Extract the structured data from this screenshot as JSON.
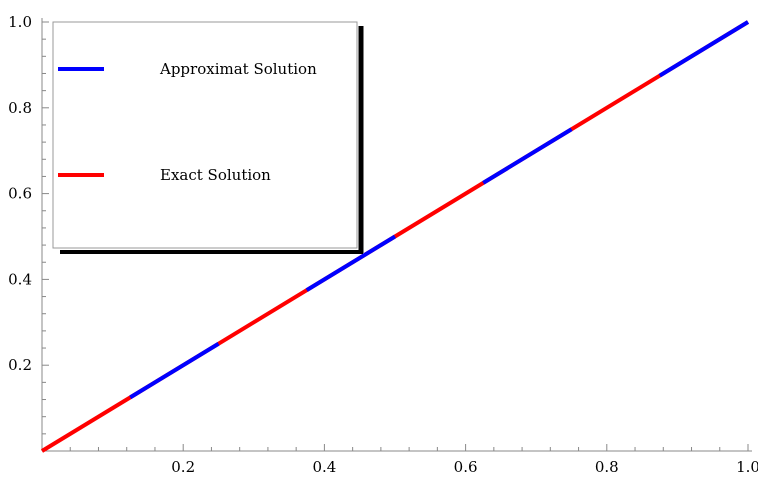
{
  "chart_data": {
    "type": "line",
    "title": "",
    "xlabel": "",
    "ylabel": "",
    "xlim": [
      0,
      1.0
    ],
    "ylim": [
      0,
      1.0
    ],
    "x_ticks": [
      0.2,
      0.4,
      0.6,
      0.8,
      1.0
    ],
    "x_tick_labels": [
      "0.2",
      "0.4",
      "0.6",
      "0.8",
      "1.0"
    ],
    "y_ticks": [
      0.2,
      0.4,
      0.6,
      0.8,
      1.0
    ],
    "y_tick_labels": [
      "0.2",
      "0.4",
      "0.6",
      "0.8",
      "1.0"
    ],
    "grid": false,
    "legend_position": "top-left",
    "series": [
      {
        "name": "Approximat Solution",
        "color": "#0000ff",
        "x": [
          0,
          1.0
        ],
        "y": [
          0,
          1.0
        ],
        "style": "dashed"
      },
      {
        "name": "Exact Solution",
        "color": "#ff0000",
        "x": [
          0,
          1.0
        ],
        "y": [
          0,
          1.0
        ],
        "style": "dashed"
      }
    ]
  }
}
